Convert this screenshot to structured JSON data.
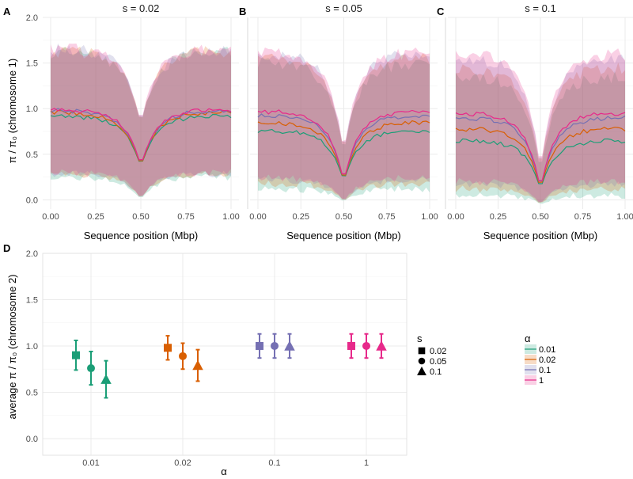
{
  "chart_data": {
    "type": "composite",
    "colors": {
      "0.01": "#1b9e77",
      "0.02": "#d95f02",
      "0.1": "#7570b3",
      "1": "#e7298a"
    },
    "top": {
      "type": "area+line",
      "xlabel": "Sequence position (Mbp)",
      "ylabel": "π / π₀ (chromosome 1)",
      "xlim": [
        0,
        1
      ],
      "ylim": [
        -0.1,
        2.0
      ],
      "xticks": [
        "0.00",
        "0.25",
        "0.50",
        "0.75",
        "1.00"
      ],
      "xtick_values": [
        0,
        0.25,
        0.5,
        0.75,
        1.0
      ],
      "yticks": [
        "0.0",
        "0.5",
        "1.0",
        "1.5",
        "2.0"
      ],
      "ytick_values": [
        0,
        0.5,
        1.0,
        1.5,
        2.0
      ],
      "panels": [
        {
          "letter": "A",
          "title": "s = 0.02",
          "series": [
            {
              "alpha": "0.01",
              "center_mean": 0.92,
              "center_dip": 0.36,
              "upper_mean": 1.62,
              "upper_dip": 0.82,
              "lower_mean": 0.25,
              "lower_dip": 0.0
            },
            {
              "alpha": "0.02",
              "center_mean": 0.96,
              "center_dip": 0.36,
              "upper_mean": 1.63,
              "upper_dip": 0.82,
              "lower_mean": 0.28,
              "lower_dip": 0.01
            },
            {
              "alpha": "0.1",
              "center_mean": 0.98,
              "center_dip": 0.37,
              "upper_mean": 1.65,
              "upper_dip": 0.83,
              "lower_mean": 0.29,
              "lower_dip": 0.01
            },
            {
              "alpha": "1",
              "center_mean": 0.99,
              "center_dip": 0.37,
              "upper_mean": 1.66,
              "upper_dip": 0.84,
              "lower_mean": 0.3,
              "lower_dip": 0.01
            }
          ]
        },
        {
          "letter": "B",
          "title": "s = 0.05",
          "series": [
            {
              "alpha": "0.01",
              "center_mean": 0.76,
              "center_dip": 0.2,
              "upper_mean": 1.5,
              "upper_dip": 0.5,
              "lower_mean": 0.12,
              "lower_dip": -0.02
            },
            {
              "alpha": "0.02",
              "center_mean": 0.85,
              "center_dip": 0.2,
              "upper_mean": 1.55,
              "upper_dip": 0.52,
              "lower_mean": 0.18,
              "lower_dip": -0.02
            },
            {
              "alpha": "0.1",
              "center_mean": 0.93,
              "center_dip": 0.2,
              "upper_mean": 1.6,
              "upper_dip": 0.52,
              "lower_mean": 0.22,
              "lower_dip": -0.02
            },
            {
              "alpha": "1",
              "center_mean": 0.97,
              "center_dip": 0.2,
              "upper_mean": 1.62,
              "upper_dip": 0.53,
              "lower_mean": 0.24,
              "lower_dip": -0.02
            }
          ]
        },
        {
          "letter": "C",
          "title": "s = 0.1",
          "series": [
            {
              "alpha": "0.01",
              "center_mean": 0.65,
              "center_dip": 0.12,
              "upper_mean": 1.35,
              "upper_dip": 0.3,
              "lower_mean": 0.05,
              "lower_dip": -0.05
            },
            {
              "alpha": "0.02",
              "center_mean": 0.78,
              "center_dip": 0.12,
              "upper_mean": 1.45,
              "upper_dip": 0.32,
              "lower_mean": 0.12,
              "lower_dip": -0.05
            },
            {
              "alpha": "0.1",
              "center_mean": 0.9,
              "center_dip": 0.12,
              "upper_mean": 1.55,
              "upper_dip": 0.33,
              "lower_mean": 0.17,
              "lower_dip": -0.05
            },
            {
              "alpha": "1",
              "center_mean": 0.95,
              "center_dip": 0.12,
              "upper_mean": 1.6,
              "upper_dip": 0.34,
              "lower_mean": 0.2,
              "lower_dip": -0.05
            }
          ]
        }
      ]
    },
    "bottom": {
      "letter": "D",
      "type": "pointrange",
      "xlabel": "α",
      "ylabel": "average π / π₀ (chromosome 2)",
      "categories": [
        "0.01",
        "0.02",
        "0.1",
        "1"
      ],
      "ylim": [
        -0.18,
        2.0
      ],
      "yticks": [
        "0.0",
        "0.5",
        "1.0",
        "1.5",
        "2.0"
      ],
      "ytick_values": [
        0,
        0.5,
        1.0,
        1.5,
        2.0
      ],
      "points": [
        {
          "alpha": "0.01",
          "s": "0.02",
          "mean": 0.9,
          "lo": 0.74,
          "hi": 1.06
        },
        {
          "alpha": "0.01",
          "s": "0.05",
          "mean": 0.76,
          "lo": 0.58,
          "hi": 0.94
        },
        {
          "alpha": "0.01",
          "s": "0.1",
          "mean": 0.64,
          "lo": 0.44,
          "hi": 0.84
        },
        {
          "alpha": "0.02",
          "s": "0.02",
          "mean": 0.98,
          "lo": 0.85,
          "hi": 1.11
        },
        {
          "alpha": "0.02",
          "s": "0.05",
          "mean": 0.89,
          "lo": 0.75,
          "hi": 1.03
        },
        {
          "alpha": "0.02",
          "s": "0.1",
          "mean": 0.79,
          "lo": 0.62,
          "hi": 0.96
        },
        {
          "alpha": "0.1",
          "s": "0.02",
          "mean": 1.0,
          "lo": 0.87,
          "hi": 1.13
        },
        {
          "alpha": "0.1",
          "s": "0.05",
          "mean": 1.0,
          "lo": 0.87,
          "hi": 1.13
        },
        {
          "alpha": "0.1",
          "s": "0.1",
          "mean": 1.0,
          "lo": 0.87,
          "hi": 1.13
        },
        {
          "alpha": "1",
          "s": "0.02",
          "mean": 1.0,
          "lo": 0.87,
          "hi": 1.13
        },
        {
          "alpha": "1",
          "s": "0.05",
          "mean": 1.0,
          "lo": 0.87,
          "hi": 1.13
        },
        {
          "alpha": "1",
          "s": "0.1",
          "mean": 1.0,
          "lo": 0.87,
          "hi": 1.13
        }
      ]
    },
    "legends": {
      "shape": {
        "title": "s",
        "items": [
          {
            "label": "0.02",
            "shape": "square"
          },
          {
            "label": "0.05",
            "shape": "circle"
          },
          {
            "label": "0.1",
            "shape": "triangle"
          }
        ]
      },
      "color": {
        "title": "α",
        "items": [
          "0.01",
          "0.02",
          "0.1",
          "1"
        ]
      }
    }
  }
}
